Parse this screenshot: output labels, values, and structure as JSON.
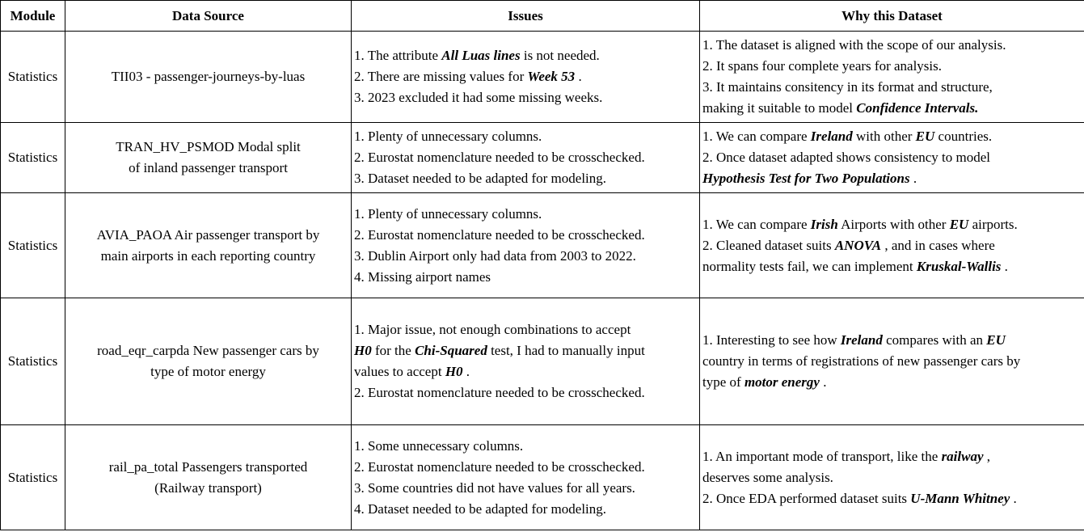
{
  "headers": {
    "module": "Module",
    "source": "Data Source",
    "issues": "Issues",
    "why": "Why this Dataset"
  },
  "rows": [
    {
      "module": "Statistics",
      "source": [
        "TII03 - passenger-journeys-by-luas"
      ],
      "issues": [
        [
          {
            "t": "1. The attribute "
          },
          {
            "t": "All Luas lines",
            "b": true
          },
          {
            "t": "  is not needed."
          }
        ],
        [
          {
            "t": "2. There are missing values for "
          },
          {
            "t": "Week 53",
            "b": true
          },
          {
            "t": " ."
          }
        ],
        [
          {
            "t": "3. 2023 excluded it had some missing weeks."
          }
        ]
      ],
      "why": [
        [
          {
            "t": "1. The dataset is aligned with the scope of our analysis."
          }
        ],
        [
          {
            "t": "2. It spans four complete years for analysis."
          }
        ],
        [
          {
            "t": "3. It maintains consitency in its format and structure,"
          }
        ],
        [
          {
            "t": "making it suitable to model "
          },
          {
            "t": "Confidence Intervals.",
            "b": true
          }
        ]
      ]
    },
    {
      "module": "Statistics",
      "source": [
        "TRAN_HV_PSMOD Modal split",
        "of inland passenger transport"
      ],
      "issues": [
        [
          {
            "t": "1. Plenty of unnecessary columns."
          }
        ],
        [
          {
            "t": "2. Eurostat nomenclature needed to be crosschecked."
          }
        ],
        [
          {
            "t": "3. Dataset needed to be adapted for modeling."
          }
        ]
      ],
      "why": [
        [
          {
            "t": "1. We can compare "
          },
          {
            "t": "Ireland",
            "b": true
          },
          {
            "t": "  with other "
          },
          {
            "t": "EU",
            "b": true
          },
          {
            "t": " countries."
          }
        ],
        [
          {
            "t": "2. Once dataset adapted shows consistency to model"
          }
        ],
        [
          {
            "t": " "
          },
          {
            "t": "Hypothesis Test for Two Populations",
            "b": true
          },
          {
            "t": " ."
          }
        ]
      ]
    },
    {
      "module": "Statistics",
      "source": [
        "AVIA_PAOA Air passenger transport by",
        "main airports in each reporting country"
      ],
      "issues": [
        [
          {
            "t": "1. Plenty of unnecessary columns."
          }
        ],
        [
          {
            "t": "2. Eurostat nomenclature needed to be crosschecked."
          }
        ],
        [
          {
            "t": "3. Dublin Airport only had data from 2003 to 2022."
          }
        ],
        [
          {
            "t": "4. Missing airport names"
          }
        ]
      ],
      "why": [
        [
          {
            "t": "1. We can compare "
          },
          {
            "t": "Irish",
            "b": true
          },
          {
            "t": "  Airports with other "
          },
          {
            "t": "EU",
            "b": true
          },
          {
            "t": " airports."
          }
        ],
        [
          {
            "t": "2. Cleaned dataset suits "
          },
          {
            "t": "ANOVA",
            "b": true
          },
          {
            "t": " , and in cases where"
          }
        ],
        [
          {
            "t": "normality tests fail, we can implement "
          },
          {
            "t": "Kruskal-Wallis",
            "b": true
          },
          {
            "t": " ."
          }
        ]
      ]
    },
    {
      "module": "Statistics",
      "source": [
        "road_eqr_carpda New passenger cars by",
        "type of motor energy"
      ],
      "issues": [
        [
          {
            "t": "1. Major issue, not enough combinations to accept"
          }
        ],
        [
          {
            "t": "H0",
            "b": true
          },
          {
            "t": "  for the "
          },
          {
            "t": "Chi-Squared",
            "b": true
          },
          {
            "t": "  test, I had to manually input"
          }
        ],
        [
          {
            "t": "values to accept "
          },
          {
            "t": "H0",
            "b": true
          },
          {
            "t": " ."
          }
        ],
        [
          {
            "t": "2. Eurostat nomenclature needed to be crosschecked."
          }
        ]
      ],
      "why": [
        [
          {
            "t": "1. Interesting to see how "
          },
          {
            "t": "Ireland",
            "b": true
          },
          {
            "t": "  compares with an "
          },
          {
            "t": "EU",
            "b": true
          }
        ],
        [
          {
            "t": "country in terms of registrations of new passenger cars by"
          }
        ],
        [
          {
            "t": "type of "
          },
          {
            "t": "motor energy",
            "b": true
          },
          {
            "t": " ."
          }
        ]
      ]
    },
    {
      "module": "Statistics",
      "source": [
        "rail_pa_total Passengers transported",
        "(Railway transport)"
      ],
      "issues": [
        [
          {
            "t": "1. Some unnecessary columns."
          }
        ],
        [
          {
            "t": "2. Eurostat nomenclature needed to be crosschecked."
          }
        ],
        [
          {
            "t": "3. Some countries did not have values for all years."
          }
        ],
        [
          {
            "t": "4. Dataset needed to be adapted for modeling."
          }
        ]
      ],
      "why": [
        [
          {
            "t": "1. An important mode of transport, like the "
          },
          {
            "t": "railway",
            "b": true
          },
          {
            "t": " ,"
          }
        ],
        [
          {
            "t": "deserves some analysis."
          }
        ],
        [
          {
            "t": "2. Once EDA performed dataset suits "
          },
          {
            "t": "U-Mann Whitney",
            "b": true
          },
          {
            "t": " ."
          }
        ]
      ]
    }
  ]
}
